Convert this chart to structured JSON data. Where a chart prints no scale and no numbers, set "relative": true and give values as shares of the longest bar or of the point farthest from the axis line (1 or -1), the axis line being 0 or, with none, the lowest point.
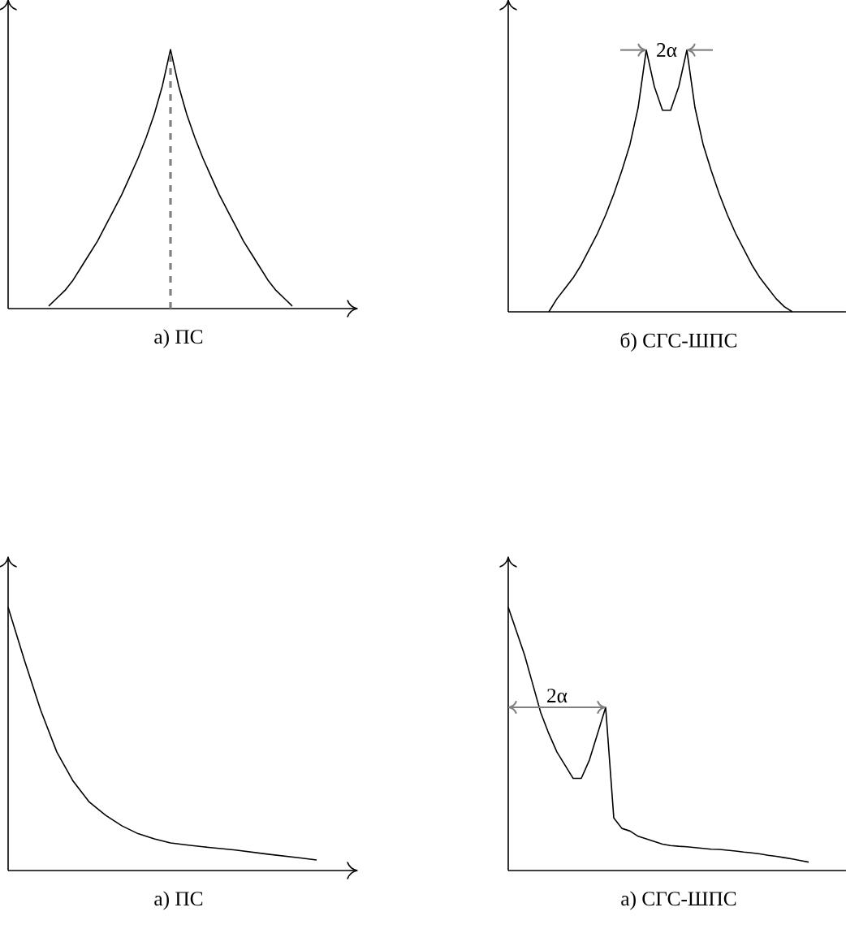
{
  "chart_data": [
    {
      "type": "line",
      "title": "а) ПС",
      "relative": true,
      "marker": "none",
      "categories": [
        null,
        null,
        null,
        null,
        null,
        null,
        null,
        null,
        null,
        null,
        null,
        null,
        null,
        null,
        null,
        null,
        null,
        null,
        null,
        null,
        null,
        null,
        null,
        null,
        null,
        null,
        null,
        null,
        null,
        null,
        null,
        null,
        null,
        null,
        null,
        null,
        null,
        null,
        null,
        null,
        null,
        null
      ],
      "series": [
        {
          "color": "#000000",
          "values": [
            null,
            null,
            null,
            null,
            null,
            0.01,
            0.04,
            0.07,
            0.11,
            0.16,
            0.21,
            0.26,
            0.32,
            0.38,
            0.44,
            0.51,
            0.58,
            0.66,
            0.75,
            0.86,
            1,
            0.86,
            0.75,
            0.66,
            0.58,
            0.51,
            0.44,
            0.38,
            0.32,
            0.26,
            0.21,
            0.16,
            0.11,
            0.07,
            0.04,
            0.01,
            null,
            null,
            null,
            null,
            null,
            null
          ]
        }
      ],
      "ref_lines": [
        {
          "axis": "x",
          "color": "#808080",
          "line_style": "dashed"
        }
      ]
    },
    {
      "type": "line",
      "title": "б) СГС-ШПС",
      "relative": true,
      "marker": "none",
      "categories": [
        null,
        null,
        null,
        null,
        null,
        null,
        null,
        null,
        null,
        null,
        null,
        null,
        null,
        null,
        null,
        null,
        null,
        null,
        null,
        null,
        null,
        null,
        null,
        null,
        null,
        null,
        null,
        null,
        null,
        null,
        null,
        null,
        null,
        null,
        null,
        null,
        null,
        null,
        null,
        null,
        null,
        null
      ],
      "series": [
        {
          "color": "#000000",
          "values": [
            null,
            null,
            null,
            null,
            null,
            0,
            0.05,
            0.09,
            0.13,
            0.18,
            0.24,
            0.3,
            0.37,
            0.45,
            0.54,
            0.64,
            0.78,
            1,
            0.86,
            0.77,
            0.77,
            0.86,
            1,
            0.78,
            0.64,
            0.54,
            0.45,
            0.37,
            0.3,
            0.24,
            0.18,
            0.13,
            0.09,
            0.05,
            0.02,
            0,
            null,
            null,
            null,
            null,
            null,
            null
          ]
        }
      ],
      "annotations": [
        "2α"
      ]
    },
    {
      "type": "line",
      "title": "а) ПС",
      "relative": true,
      "marker": "none",
      "categories": [
        null,
        null,
        null,
        null,
        null,
        null,
        null,
        null,
        null,
        null,
        null,
        null,
        null,
        null,
        null,
        null,
        null,
        null,
        null,
        null,
        null
      ],
      "series": [
        {
          "color": "#000000",
          "values": [
            1,
            0.8,
            0.61,
            0.45,
            0.34,
            0.26,
            0.21,
            0.17,
            0.14,
            0.12,
            0.105,
            0.097,
            0.09,
            0.084,
            0.078,
            0.07,
            0.062,
            0.055,
            0.048,
            0.04,
            null
          ]
        }
      ]
    },
    {
      "type": "line",
      "title": "а) СГС-ШПС",
      "relative": true,
      "marker": "none",
      "categories": [
        null,
        null,
        null,
        null,
        null,
        null,
        null,
        null,
        null,
        null,
        null,
        null,
        null,
        null,
        null,
        null,
        null,
        null,
        null,
        null,
        null,
        null,
        null,
        null,
        null,
        null,
        null,
        null,
        null,
        null,
        null,
        null,
        null,
        null,
        null,
        null,
        null,
        null,
        null,
        null,
        null,
        null
      ],
      "series": [
        {
          "color": "#000000",
          "values": [
            1,
            0.91,
            0.82,
            0.71,
            0.6,
            0.52,
            0.45,
            0.4,
            0.35,
            0.35,
            0.42,
            0.52,
            0.62,
            0.2,
            0.16,
            0.15,
            0.13,
            0.12,
            0.11,
            0.1,
            0.095,
            0.092,
            0.09,
            0.087,
            0.084,
            0.081,
            0.08,
            0.077,
            0.074,
            0.07,
            0.067,
            0.063,
            0.058,
            0.054,
            0.049,
            0.044,
            0.038,
            0.032,
            null,
            null,
            null,
            null
          ]
        }
      ],
      "annotations": [
        "2α"
      ]
    }
  ]
}
